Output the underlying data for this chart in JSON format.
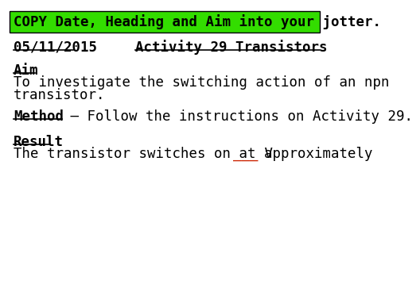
{
  "banner_text": "COPY Date, Heading and Aim into your jotter.",
  "banner_bg": "#33dd00",
  "date_text": "05/11/2015",
  "heading_text": "Activity 29 Transistors",
  "aim_label": "Aim",
  "aim_line1": "To investigate the switching action of an npn",
  "aim_line2": "transistor.",
  "method_label": "Method",
  "method_rest": " – Follow the instructions on Activity 29.",
  "result_label": "Result",
  "result_body": "The transistor switches on at approximately",
  "result_blank": "___",
  "result_unit": " V",
  "bg_color": "#ffffff",
  "text_color": "#000000",
  "blank_color": "#cc2200",
  "font_size": 12.5,
  "banner_font_size": 12.5
}
